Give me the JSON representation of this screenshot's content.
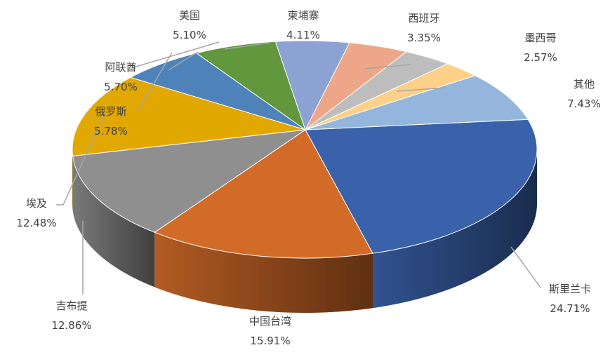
{
  "chart_data": {
    "type": "pie",
    "style": "3d",
    "title": "",
    "legend": "none",
    "slices": [
      {
        "label": "斯里兰卡",
        "value": 24.71,
        "display": "24.71%",
        "color": "#3A62AB"
      },
      {
        "label": "中国台湾",
        "value": 15.91,
        "display": "15.91%",
        "color": "#D36B28"
      },
      {
        "label": "吉布提",
        "value": 12.86,
        "display": "12.86%",
        "color": "#8F8F8F"
      },
      {
        "label": "埃及",
        "value": 12.48,
        "display": "12.48%",
        "color": "#E0A800"
      },
      {
        "label": "俄罗斯",
        "value": 5.78,
        "display": "5.78%",
        "color": "#4E83BA"
      },
      {
        "label": "阿联酋",
        "value": 5.7,
        "display": "5.70%",
        "color": "#62973E"
      },
      {
        "label": "美国",
        "value": 5.1,
        "display": "5.10%",
        "color": "#8CA2D3"
      },
      {
        "label": "柬埔寨",
        "value": 4.11,
        "display": "4.11%",
        "color": "#EDA688"
      },
      {
        "label": "西班牙",
        "value": 3.35,
        "display": "3.35%",
        "color": "#BDBDBD"
      },
      {
        "label": "墨西哥",
        "value": 2.57,
        "display": "2.57%",
        "color": "#FCD087"
      },
      {
        "label": "其他",
        "value": 7.43,
        "display": "7.43%",
        "color": "#94B6DD"
      }
    ]
  }
}
